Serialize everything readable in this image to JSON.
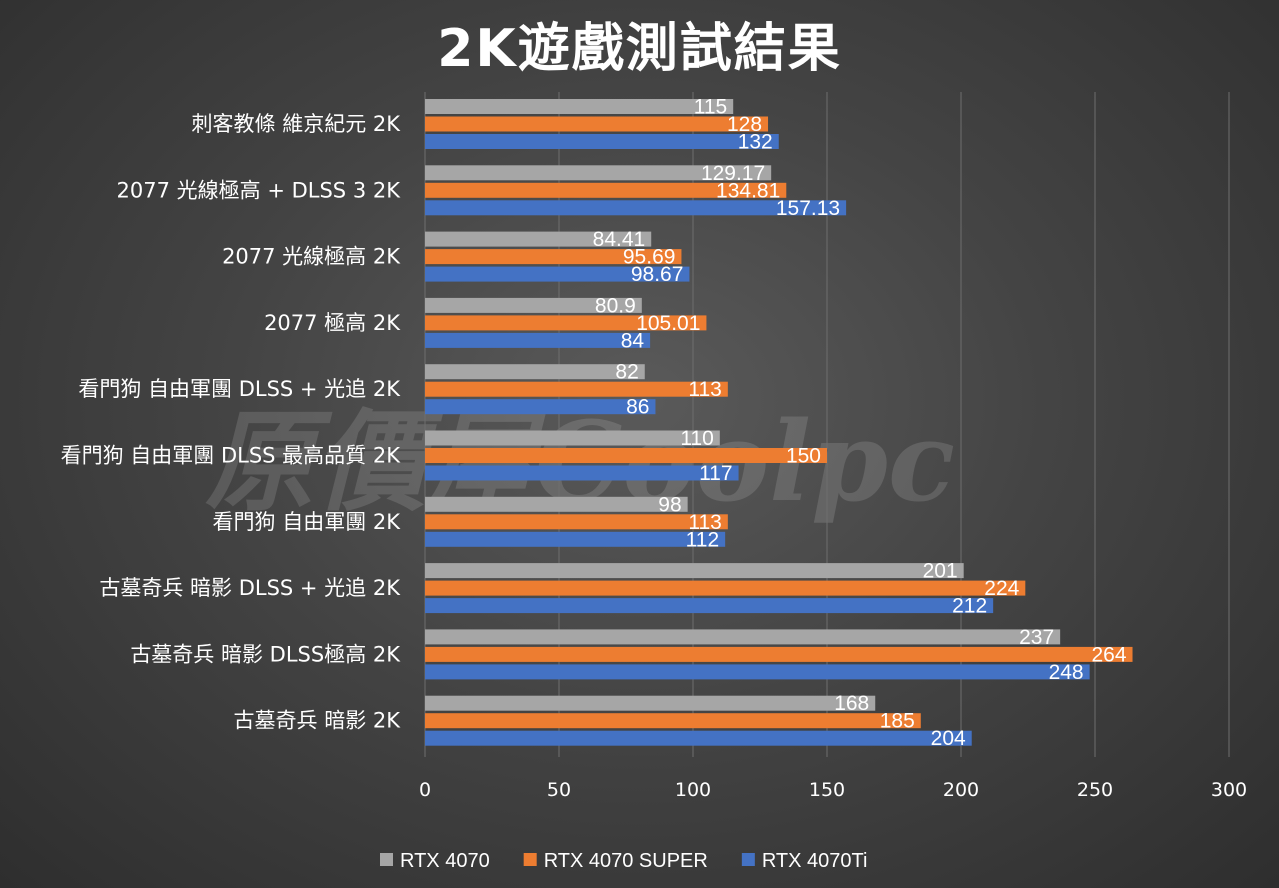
{
  "chart_data": {
    "type": "bar",
    "orientation": "horizontal",
    "title": "2K遊戲測試結果",
    "categories": [
      "刺客教條 維京紀元 2K",
      "2077 光線極高 + DLSS 3 2K",
      "2077 光線極高 2K",
      "2077 極高 2K",
      "看門狗 自由軍團 DLSS + 光追 2K",
      "看門狗 自由軍團 DLSS 最高品質 2K",
      "看門狗 自由軍團 2K",
      "古墓奇兵 暗影 DLSS + 光追 2K",
      "古墓奇兵 暗影 DLSS極高 2K",
      "古墓奇兵 暗影 2K"
    ],
    "series": [
      {
        "name": "RTX 4070",
        "color": "#a6a6a6",
        "values": [
          115,
          129.17,
          84.41,
          80.9,
          82,
          110,
          98,
          201,
          237,
          168
        ]
      },
      {
        "name": "RTX 4070 SUPER",
        "color": "#ed7d31",
        "values": [
          128,
          134.81,
          95.69,
          105.01,
          113,
          150,
          113,
          224,
          264,
          185
        ]
      },
      {
        "name": "RTX 4070Ti",
        "color": "#4472c4",
        "values": [
          132,
          157.13,
          98.67,
          84,
          86,
          117,
          112,
          212,
          248,
          204
        ]
      }
    ],
    "xlim": [
      0,
      300
    ],
    "xticks": [
      0,
      50,
      100,
      150,
      200,
      250,
      300
    ],
    "grid": true,
    "legend_position": "bottom"
  },
  "watermark": "原價屋Coolpc"
}
